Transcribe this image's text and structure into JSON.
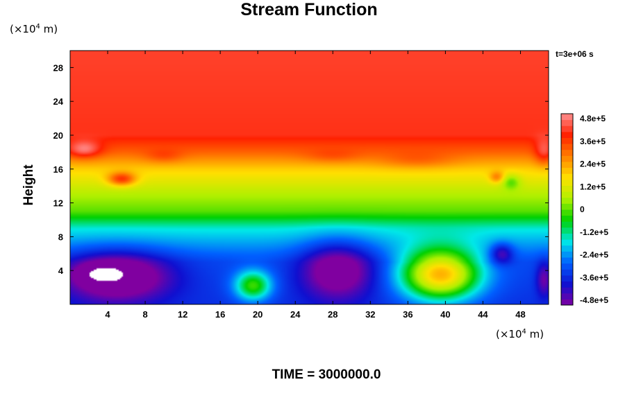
{
  "chart_data": {
    "type": "heatmap",
    "title": "Stream Function",
    "ylabel": "Height",
    "x_unit": {
      "base": "(×10",
      "exp": "4",
      "tail": " m)"
    },
    "y_unit": {
      "base": "(×10",
      "exp": "4",
      "tail": " m)"
    },
    "time_label": "t=3e+06 s",
    "footer": "TIME = 3000000.0",
    "xlim": [
      0,
      51
    ],
    "ylim": [
      0,
      30
    ],
    "x_ticks": [
      4,
      8,
      12,
      16,
      20,
      24,
      28,
      32,
      36,
      40,
      44,
      48
    ],
    "y_ticks": [
      4,
      8,
      12,
      16,
      20,
      24,
      28
    ],
    "colorbar": {
      "range": [
        -480000,
        480000
      ],
      "tick_values": [
        480000,
        360000,
        240000,
        120000,
        0,
        -120000,
        -240000,
        -360000,
        -480000
      ],
      "tick_labels": [
        "4.8e+5",
        "3.6e+5",
        "2.4e+5",
        "1.2e+5",
        "0",
        "-1.2e+5",
        "-2.4e+5",
        "-3.6e+5",
        "-4.8e+5"
      ],
      "colors": [
        "#8000a0",
        "#1010d0",
        "#0060ff",
        "#00e8e8",
        "#00d000",
        "#b0f000",
        "#ffe000",
        "#ff8000",
        "#ff2000",
        "#ff9090"
      ]
    },
    "field": {
      "background": [
        [
          0,
          -330000
        ],
        [
          5,
          -300000
        ],
        [
          9,
          -150000
        ],
        [
          11,
          0
        ],
        [
          13,
          60000
        ],
        [
          16,
          180000
        ],
        [
          18,
          300000
        ],
        [
          20,
          390000
        ],
        [
          30,
          405000
        ]
      ],
      "features": [
        {
          "x": 5,
          "y": 3.3,
          "rx": 5.5,
          "ry": 2.8,
          "amp": -300000
        },
        {
          "x": 3.5,
          "y": 3.6,
          "rx": 2.2,
          "ry": 1.0,
          "amp": -250000
        },
        {
          "x": 19.5,
          "y": 2.2,
          "rx": 2.0,
          "ry": 1.8,
          "amp": 300000
        },
        {
          "x": 28.5,
          "y": 4.0,
          "rx": 3.8,
          "ry": 3.3,
          "amp": -250000
        },
        {
          "x": 39.5,
          "y": 3.5,
          "rx": 4.2,
          "ry": 3.0,
          "amp": 520000
        },
        {
          "x": 46,
          "y": 6.0,
          "rx": 1.2,
          "ry": 1.2,
          "amp": -180000
        },
        {
          "x": 50.5,
          "y": 3.0,
          "rx": 0.8,
          "ry": 2.0,
          "amp": -150000
        },
        {
          "x": 1.5,
          "y": 18.3,
          "rx": 1.8,
          "ry": 1.0,
          "amp": 150000
        },
        {
          "x": 5.5,
          "y": 14.8,
          "rx": 1.5,
          "ry": 0.8,
          "amp": 220000
        },
        {
          "x": 47,
          "y": 14.5,
          "rx": 1.0,
          "ry": 0.9,
          "amp": -120000
        },
        {
          "x": 45.5,
          "y": 15.0,
          "rx": 0.8,
          "ry": 0.7,
          "amp": 130000
        },
        {
          "x": 37,
          "y": 17.0,
          "rx": 4.0,
          "ry": 1.0,
          "amp": 60000
        },
        {
          "x": 50.5,
          "y": 18.0,
          "rx": 1.0,
          "ry": 1.5,
          "amp": 120000
        },
        {
          "x": 28,
          "y": 17.5,
          "rx": 3.0,
          "ry": 0.8,
          "amp": 50000
        },
        {
          "x": 10,
          "y": 17.5,
          "rx": 2.0,
          "ry": 0.8,
          "amp": 60000
        }
      ]
    }
  }
}
